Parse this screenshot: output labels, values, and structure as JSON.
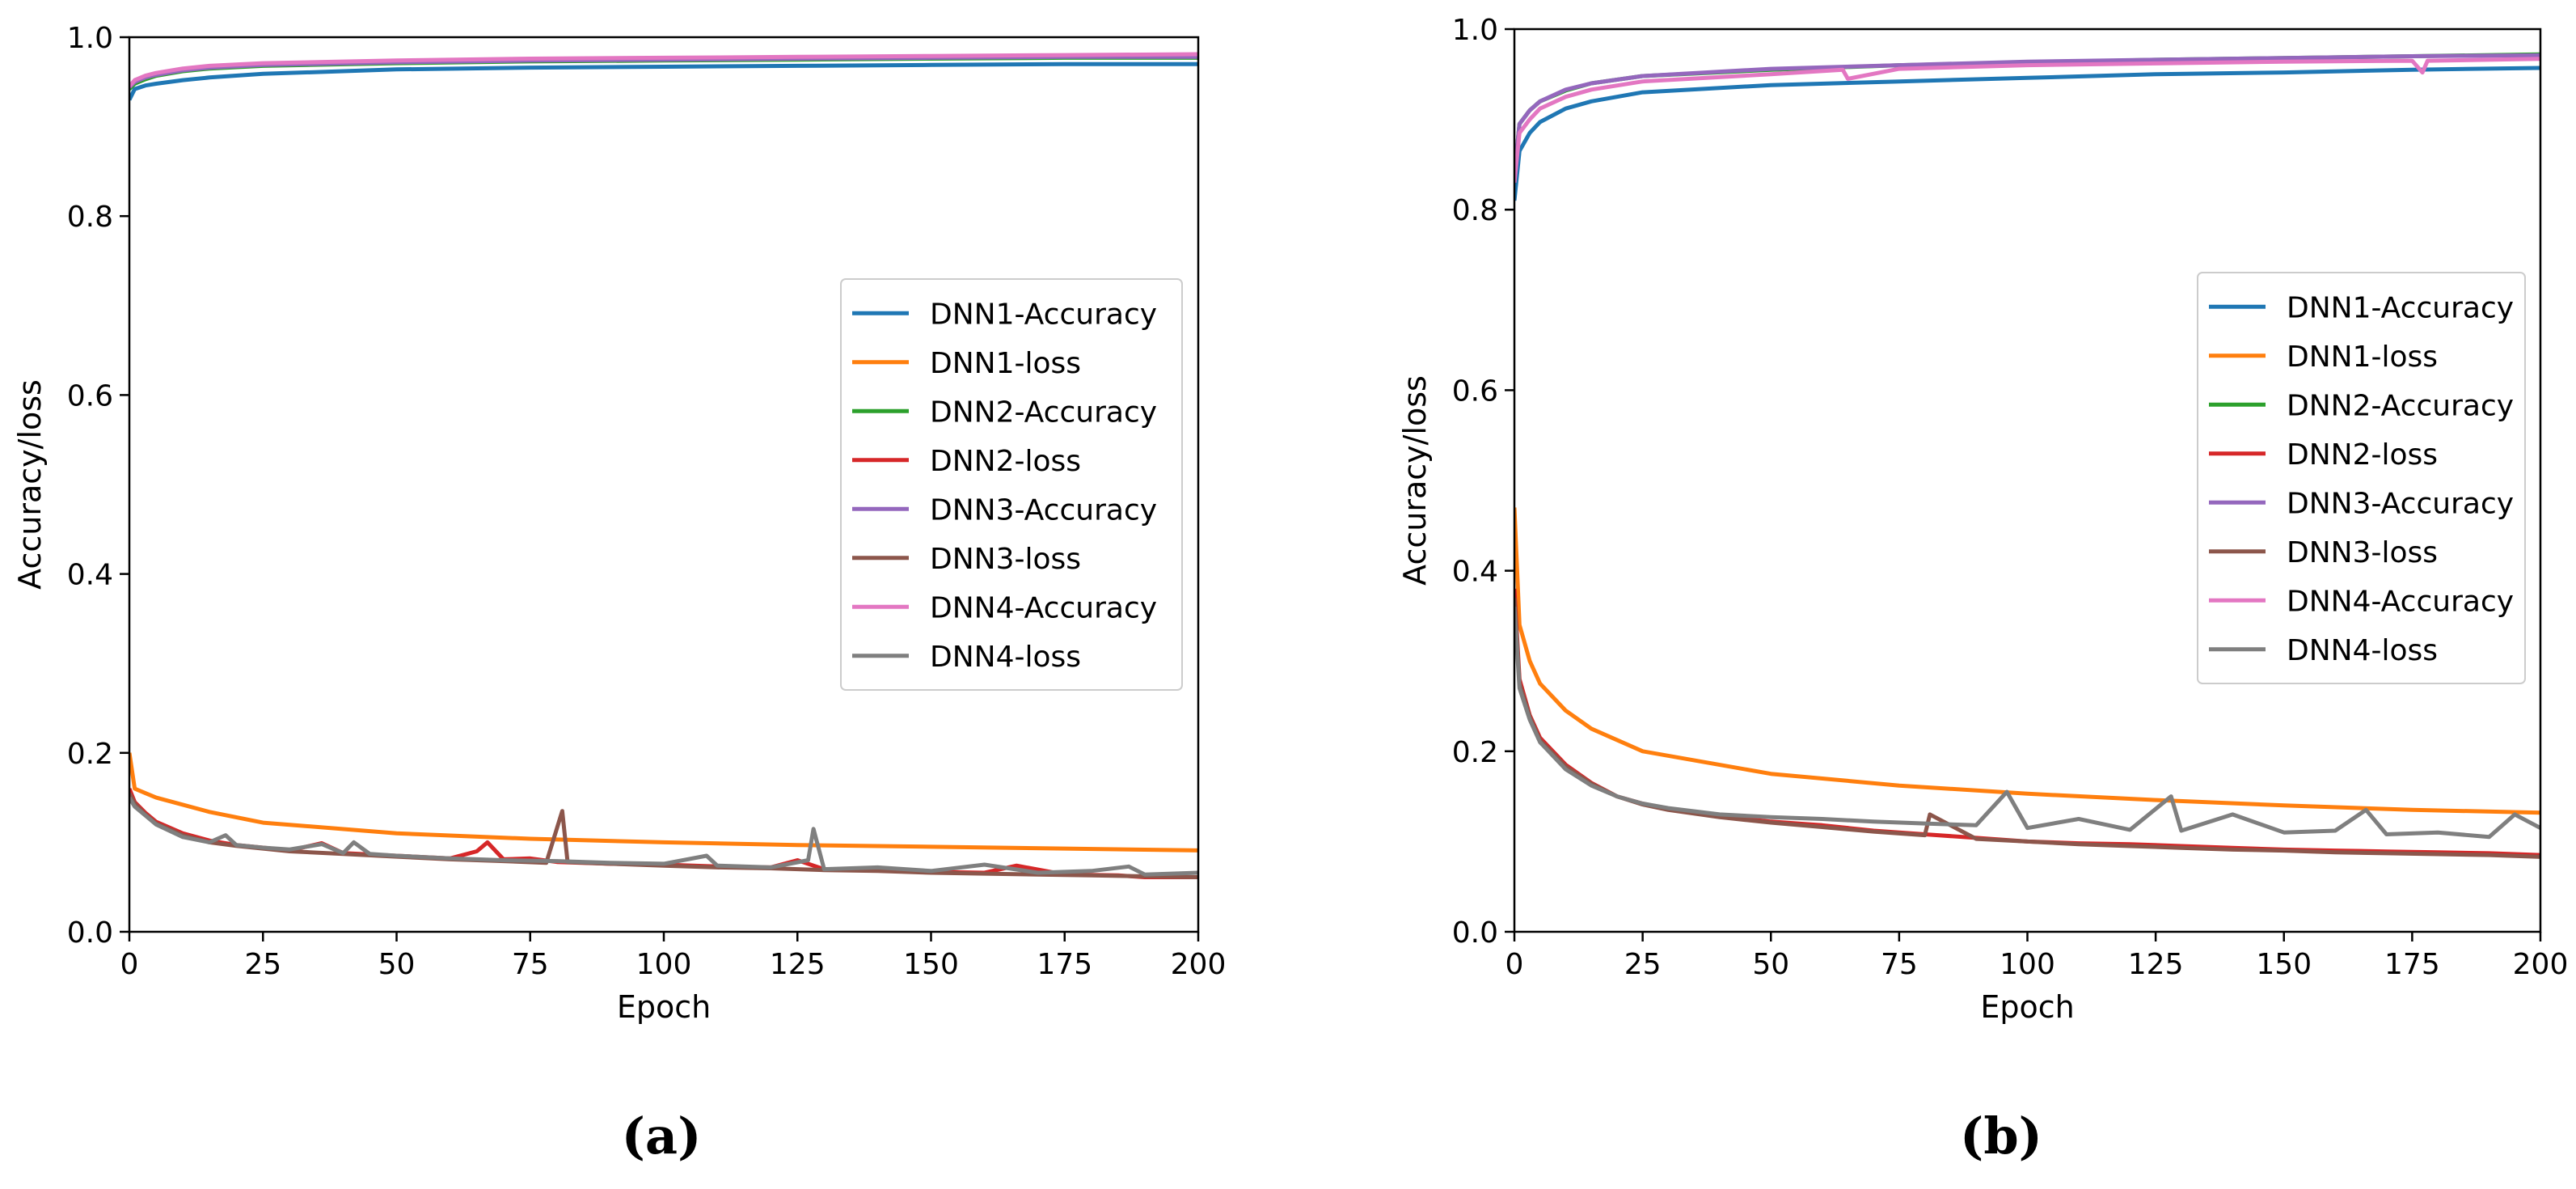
{
  "chart_data": [
    {
      "type": "line",
      "panel": "(a)",
      "xlabel": "Epoch",
      "ylabel": "Accuracy/loss",
      "xlim": [
        0,
        200
      ],
      "ylim": [
        0.0,
        1.0
      ],
      "xticks": [
        0,
        25,
        50,
        75,
        100,
        125,
        150,
        175,
        200
      ],
      "xtick_labels": [
        "0",
        "25",
        "50",
        "75",
        "100",
        "125",
        "150",
        "175",
        "200"
      ],
      "yticks": [
        0.0,
        0.2,
        0.4,
        0.6,
        0.8,
        1.0
      ],
      "ytick_labels": [
        "0.0",
        "0.2",
        "0.4",
        "0.6",
        "0.8",
        "1.0"
      ],
      "legend_position": "center-right",
      "series": [
        {
          "name": "DNN1-Accuracy",
          "color": "#1f77b4",
          "x": [
            0,
            1,
            3,
            5,
            10,
            15,
            25,
            50,
            75,
            100,
            125,
            150,
            175,
            200
          ],
          "y": [
            0.93,
            0.942,
            0.946,
            0.948,
            0.952,
            0.955,
            0.959,
            0.964,
            0.966,
            0.967,
            0.968,
            0.969,
            0.97,
            0.97
          ]
        },
        {
          "name": "DNN1-loss",
          "color": "#ff7f0e",
          "x": [
            0,
            1,
            3,
            5,
            10,
            15,
            25,
            50,
            75,
            100,
            125,
            150,
            175,
            200
          ],
          "y": [
            0.2,
            0.16,
            0.155,
            0.15,
            0.142,
            0.134,
            0.122,
            0.11,
            0.104,
            0.1,
            0.097,
            0.095,
            0.093,
            0.091
          ]
        },
        {
          "name": "DNN2-Accuracy",
          "color": "#2ca02c",
          "x": [
            0,
            1,
            3,
            5,
            10,
            15,
            25,
            50,
            75,
            100,
            125,
            150,
            175,
            200
          ],
          "y": [
            0.942,
            0.948,
            0.953,
            0.957,
            0.962,
            0.965,
            0.968,
            0.971,
            0.973,
            0.974,
            0.975,
            0.976,
            0.977,
            0.977
          ]
        },
        {
          "name": "DNN2-loss",
          "color": "#d62728",
          "x": [
            0,
            1,
            3,
            5,
            10,
            15,
            20,
            25,
            30,
            36,
            40,
            50,
            60,
            65,
            67,
            70,
            75,
            80,
            90,
            100,
            110,
            120,
            125,
            130,
            140,
            150,
            160,
            166,
            175,
            185,
            190,
            200
          ],
          "y": [
            0.16,
            0.145,
            0.133,
            0.123,
            0.11,
            0.102,
            0.097,
            0.094,
            0.091,
            0.099,
            0.088,
            0.085,
            0.082,
            0.09,
            0.1,
            0.081,
            0.082,
            0.078,
            0.076,
            0.075,
            0.073,
            0.072,
            0.08,
            0.07,
            0.069,
            0.067,
            0.066,
            0.074,
            0.064,
            0.063,
            0.061,
            0.061
          ]
        },
        {
          "name": "DNN3-Accuracy",
          "color": "#9467bd",
          "x": [
            0,
            1,
            3,
            5,
            10,
            15,
            25,
            50,
            75,
            100,
            125,
            150,
            175,
            200
          ],
          "y": [
            0.944,
            0.95,
            0.955,
            0.958,
            0.963,
            0.966,
            0.969,
            0.972,
            0.974,
            0.975,
            0.976,
            0.977,
            0.978,
            0.978
          ]
        },
        {
          "name": "DNN3-loss",
          "color": "#8c564b",
          "x": [
            0,
            1,
            3,
            5,
            10,
            15,
            20,
            25,
            30,
            40,
            50,
            60,
            70,
            78,
            81,
            82,
            90,
            100,
            110,
            120,
            130,
            140,
            150,
            160,
            170,
            180,
            190,
            200
          ],
          "y": [
            0.155,
            0.143,
            0.131,
            0.121,
            0.108,
            0.1,
            0.096,
            0.093,
            0.09,
            0.087,
            0.084,
            0.081,
            0.079,
            0.077,
            0.135,
            0.078,
            0.076,
            0.074,
            0.072,
            0.071,
            0.069,
            0.068,
            0.066,
            0.065,
            0.064,
            0.063,
            0.062,
            0.061
          ]
        },
        {
          "name": "DNN4-Accuracy",
          "color": "#e377c2",
          "x": [
            0,
            1,
            3,
            5,
            10,
            15,
            25,
            50,
            75,
            100,
            125,
            150,
            175,
            200
          ],
          "y": [
            0.945,
            0.952,
            0.957,
            0.96,
            0.965,
            0.968,
            0.971,
            0.974,
            0.976,
            0.977,
            0.978,
            0.979,
            0.98,
            0.981
          ]
        },
        {
          "name": "DNN4-loss",
          "color": "#7f7f7f",
          "x": [
            0,
            1,
            3,
            5,
            10,
            15,
            18,
            20,
            25,
            30,
            36,
            40,
            42,
            45,
            50,
            60,
            70,
            80,
            90,
            100,
            108,
            110,
            120,
            127,
            128,
            130,
            140,
            150,
            160,
            170,
            180,
            187,
            190,
            200
          ],
          "y": [
            0.15,
            0.14,
            0.13,
            0.12,
            0.106,
            0.1,
            0.108,
            0.097,
            0.094,
            0.092,
            0.098,
            0.088,
            0.1,
            0.087,
            0.085,
            0.082,
            0.08,
            0.079,
            0.077,
            0.076,
            0.085,
            0.074,
            0.072,
            0.08,
            0.115,
            0.07,
            0.072,
            0.068,
            0.075,
            0.066,
            0.068,
            0.073,
            0.064,
            0.066
          ]
        }
      ]
    },
    {
      "type": "line",
      "panel": "(b)",
      "xlabel": "Epoch",
      "ylabel": "Accuracy/loss",
      "xlim": [
        0,
        200
      ],
      "ylim": [
        0.0,
        1.0
      ],
      "xticks": [
        0,
        25,
        50,
        75,
        100,
        125,
        150,
        175,
        200
      ],
      "xtick_labels": [
        "0",
        "25",
        "50",
        "75",
        "100",
        "125",
        "150",
        "175",
        "200"
      ],
      "yticks": [
        0.0,
        0.2,
        0.4,
        0.6,
        0.8,
        1.0
      ],
      "ytick_labels": [
        "0.0",
        "0.2",
        "0.4",
        "0.6",
        "0.8",
        "1.0"
      ],
      "legend_position": "center-right",
      "series": [
        {
          "name": "DNN1-Accuracy",
          "color": "#1f77b4",
          "x": [
            0,
            1,
            3,
            5,
            10,
            15,
            25,
            50,
            75,
            100,
            125,
            150,
            175,
            200
          ],
          "y": [
            0.81,
            0.865,
            0.885,
            0.897,
            0.912,
            0.92,
            0.93,
            0.938,
            0.942,
            0.946,
            0.95,
            0.952,
            0.955,
            0.957
          ]
        },
        {
          "name": "DNN1-loss",
          "color": "#ff7f0e",
          "x": [
            0,
            1,
            3,
            5,
            10,
            15,
            25,
            50,
            75,
            100,
            125,
            150,
            175,
            200
          ],
          "y": [
            0.47,
            0.34,
            0.3,
            0.275,
            0.245,
            0.225,
            0.2,
            0.175,
            0.162,
            0.153,
            0.146,
            0.14,
            0.135,
            0.132
          ]
        },
        {
          "name": "DNN2-Accuracy",
          "color": "#2ca02c",
          "x": [
            0,
            1,
            3,
            5,
            10,
            15,
            25,
            50,
            75,
            100,
            125,
            150,
            175,
            200
          ],
          "y": [
            0.84,
            0.895,
            0.91,
            0.92,
            0.932,
            0.94,
            0.948,
            0.955,
            0.96,
            0.963,
            0.966,
            0.968,
            0.97,
            0.972
          ]
        },
        {
          "name": "DNN2-loss",
          "color": "#d62728",
          "x": [
            0,
            1,
            3,
            5,
            10,
            15,
            20,
            25,
            30,
            40,
            50,
            60,
            70,
            80,
            90,
            100,
            110,
            120,
            130,
            140,
            150,
            160,
            170,
            180,
            190,
            200
          ],
          "y": [
            0.38,
            0.28,
            0.24,
            0.215,
            0.185,
            0.165,
            0.15,
            0.142,
            0.136,
            0.128,
            0.122,
            0.118,
            0.112,
            0.108,
            0.104,
            0.1,
            0.098,
            0.097,
            0.095,
            0.093,
            0.091,
            0.09,
            0.089,
            0.088,
            0.087,
            0.085
          ]
        },
        {
          "name": "DNN3-Accuracy",
          "color": "#9467bd",
          "x": [
            0,
            1,
            3,
            5,
            10,
            15,
            25,
            50,
            75,
            100,
            125,
            150,
            175,
            200
          ],
          "y": [
            0.84,
            0.895,
            0.91,
            0.92,
            0.933,
            0.94,
            0.948,
            0.956,
            0.96,
            0.964,
            0.966,
            0.968,
            0.97,
            0.971
          ]
        },
        {
          "name": "DNN3-loss",
          "color": "#8c564b",
          "x": [
            0,
            1,
            3,
            5,
            10,
            15,
            20,
            25,
            30,
            40,
            50,
            60,
            70,
            80,
            81,
            90,
            100,
            110,
            120,
            130,
            140,
            150,
            160,
            170,
            180,
            190,
            200
          ],
          "y": [
            0.37,
            0.275,
            0.238,
            0.212,
            0.183,
            0.164,
            0.15,
            0.141,
            0.135,
            0.127,
            0.121,
            0.116,
            0.111,
            0.107,
            0.13,
            0.103,
            0.1,
            0.097,
            0.095,
            0.093,
            0.091,
            0.09,
            0.088,
            0.087,
            0.086,
            0.085,
            0.083
          ]
        },
        {
          "name": "DNN4-Accuracy",
          "color": "#e377c2",
          "x": [
            0,
            1,
            3,
            5,
            10,
            15,
            25,
            50,
            64,
            65,
            75,
            100,
            125,
            150,
            175,
            177,
            178,
            200
          ],
          "y": [
            0.83,
            0.885,
            0.9,
            0.912,
            0.925,
            0.933,
            0.942,
            0.95,
            0.955,
            0.945,
            0.956,
            0.96,
            0.962,
            0.964,
            0.965,
            0.952,
            0.965,
            0.967
          ]
        },
        {
          "name": "DNN4-loss",
          "color": "#7f7f7f",
          "x": [
            0,
            1,
            3,
            5,
            10,
            15,
            20,
            25,
            30,
            40,
            50,
            60,
            70,
            80,
            90,
            96,
            100,
            110,
            120,
            128,
            130,
            140,
            150,
            160,
            166,
            170,
            180,
            190,
            195,
            200
          ],
          "y": [
            0.36,
            0.27,
            0.235,
            0.21,
            0.18,
            0.162,
            0.15,
            0.142,
            0.137,
            0.13,
            0.127,
            0.125,
            0.122,
            0.12,
            0.118,
            0.155,
            0.115,
            0.125,
            0.113,
            0.15,
            0.112,
            0.13,
            0.11,
            0.112,
            0.135,
            0.108,
            0.11,
            0.105,
            0.13,
            0.115
          ]
        }
      ]
    }
  ],
  "captions": [
    "(a)",
    "(b)"
  ]
}
